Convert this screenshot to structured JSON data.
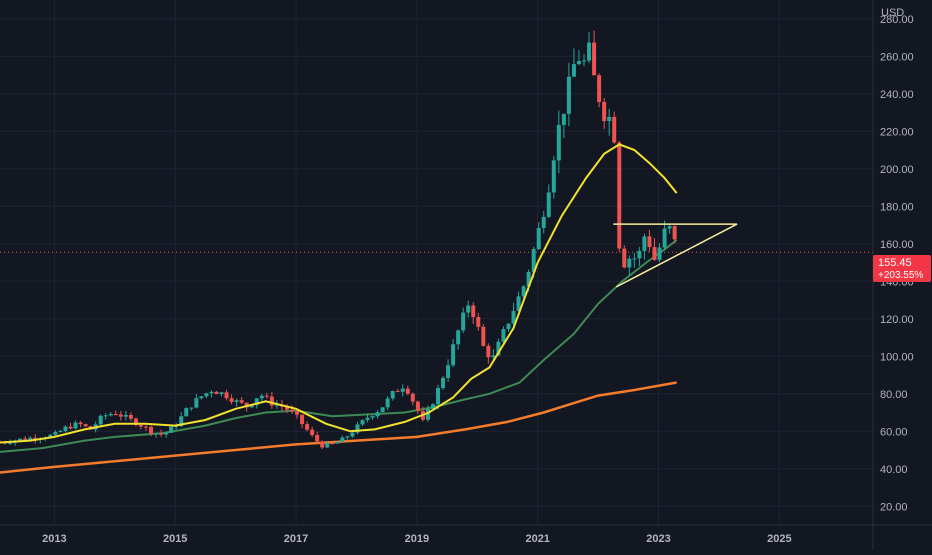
{
  "chart_data": {
    "type": "candlestick",
    "currency_label": "USD",
    "ylim": [
      10,
      290
    ],
    "xlim": [
      2012.1,
      2026.55
    ],
    "y_ticks": [
      "280.00",
      "260.00",
      "240.00",
      "220.00",
      "200.00",
      "180.00",
      "160.00",
      "140.00",
      "120.00",
      "100.00",
      "80.00",
      "60.00",
      "40.00",
      "20.00"
    ],
    "y_tick_values": [
      280,
      260,
      240,
      220,
      200,
      180,
      160,
      140,
      120,
      100,
      80,
      60,
      40,
      20
    ],
    "x_ticks": [
      "2013",
      "2015",
      "2017",
      "2019",
      "2021",
      "2023",
      "2025"
    ],
    "x_tick_values": [
      2013,
      2015,
      2017,
      2019,
      2021,
      2023,
      2025
    ],
    "last_price": {
      "value": 155.45,
      "label": "155.45",
      "change_label": "+203.55%"
    },
    "colors": {
      "background": "#131722",
      "grid": "#1f2333",
      "up": "#26a69a",
      "down": "#ef5350",
      "ma_fast": "#f2e22d",
      "ma_mid": "#3e8a55",
      "ma_slow": "#f57c2a",
      "trendline": "#f6ee9a",
      "axis_text": "#b2b5be",
      "price_label_bg": "#f23645"
    },
    "monthly_close": [
      [
        2012.1,
        54
      ],
      [
        2012.5,
        56
      ],
      [
        2012.8,
        57
      ],
      [
        2013.0,
        58
      ],
      [
        2013.2,
        62
      ],
      [
        2013.4,
        64
      ],
      [
        2013.6,
        61
      ],
      [
        2013.8,
        68
      ],
      [
        2014.0,
        70
      ],
      [
        2014.2,
        67
      ],
      [
        2014.4,
        64
      ],
      [
        2014.6,
        60
      ],
      [
        2014.8,
        58
      ],
      [
        2015.0,
        63
      ],
      [
        2015.2,
        72
      ],
      [
        2015.4,
        78
      ],
      [
        2015.6,
        82
      ],
      [
        2015.8,
        80
      ],
      [
        2016.0,
        76
      ],
      [
        2016.2,
        73
      ],
      [
        2016.4,
        80
      ],
      [
        2016.6,
        75
      ],
      [
        2016.8,
        73
      ],
      [
        2017.0,
        68
      ],
      [
        2017.15,
        62
      ],
      [
        2017.3,
        56
      ],
      [
        2017.45,
        52
      ],
      [
        2017.6,
        53
      ],
      [
        2017.8,
        56
      ],
      [
        2018.0,
        62
      ],
      [
        2018.2,
        68
      ],
      [
        2018.4,
        72
      ],
      [
        2018.6,
        80
      ],
      [
        2018.8,
        85
      ],
      [
        2019.0,
        72
      ],
      [
        2019.1,
        65
      ],
      [
        2019.3,
        78
      ],
      [
        2019.5,
        95
      ],
      [
        2019.7,
        115
      ],
      [
        2019.85,
        128
      ],
      [
        2019.95,
        122
      ],
      [
        2020.1,
        105
      ],
      [
        2020.25,
        98
      ],
      [
        2020.4,
        110
      ],
      [
        2020.6,
        125
      ],
      [
        2020.8,
        140
      ],
      [
        2021.0,
        165
      ],
      [
        2021.15,
        185
      ],
      [
        2021.3,
        215
      ],
      [
        2021.45,
        235
      ],
      [
        2021.55,
        248
      ],
      [
        2021.65,
        262
      ],
      [
        2021.75,
        255
      ],
      [
        2021.85,
        262
      ],
      [
        2021.95,
        245
      ],
      [
        2022.05,
        235
      ],
      [
        2022.15,
        225
      ],
      [
        2022.25,
        232
      ],
      [
        2022.3,
        190
      ],
      [
        2022.35,
        160
      ],
      [
        2022.45,
        148
      ],
      [
        2022.55,
        155
      ],
      [
        2022.65,
        150
      ],
      [
        2022.75,
        165
      ],
      [
        2022.85,
        160
      ],
      [
        2022.95,
        150
      ],
      [
        2023.05,
        162
      ],
      [
        2023.15,
        170
      ],
      [
        2023.25,
        163
      ],
      [
        2023.3,
        155.45
      ]
    ],
    "ma_fast": [
      [
        2012.1,
        54
      ],
      [
        2012.6,
        55
      ],
      [
        2013.0,
        57
      ],
      [
        2013.5,
        61
      ],
      [
        2014.0,
        64
      ],
      [
        2014.5,
        64
      ],
      [
        2015.0,
        63
      ],
      [
        2015.5,
        66
      ],
      [
        2016.0,
        72
      ],
      [
        2016.5,
        76
      ],
      [
        2017.0,
        72
      ],
      [
        2017.5,
        64
      ],
      [
        2017.9,
        60
      ],
      [
        2018.3,
        61
      ],
      [
        2018.8,
        65
      ],
      [
        2019.2,
        70
      ],
      [
        2019.6,
        78
      ],
      [
        2019.9,
        88
      ],
      [
        2020.2,
        94
      ],
      [
        2020.6,
        115
      ],
      [
        2021.0,
        150
      ],
      [
        2021.4,
        175
      ],
      [
        2021.8,
        195
      ],
      [
        2022.1,
        208
      ],
      [
        2022.35,
        213
      ],
      [
        2022.6,
        210
      ],
      [
        2022.85,
        203
      ],
      [
        2023.1,
        195
      ],
      [
        2023.3,
        187
      ]
    ],
    "ma_mid": [
      [
        2012.1,
        49
      ],
      [
        2012.8,
        51
      ],
      [
        2013.5,
        55
      ],
      [
        2014.0,
        57
      ],
      [
        2014.8,
        59
      ],
      [
        2015.5,
        63
      ],
      [
        2016.0,
        67
      ],
      [
        2016.5,
        70
      ],
      [
        2017.0,
        71
      ],
      [
        2017.6,
        68
      ],
      [
        2018.2,
        69
      ],
      [
        2018.8,
        70
      ],
      [
        2019.3,
        73
      ],
      [
        2019.8,
        77
      ],
      [
        2020.2,
        80
      ],
      [
        2020.7,
        86
      ],
      [
        2021.1,
        98
      ],
      [
        2021.6,
        112
      ],
      [
        2022.0,
        128
      ],
      [
        2022.4,
        140
      ],
      [
        2022.8,
        150
      ],
      [
        2023.1,
        157
      ],
      [
        2023.3,
        162
      ]
    ],
    "ma_slow": [
      [
        2012.1,
        38
      ],
      [
        2013.0,
        41
      ],
      [
        2014.0,
        44
      ],
      [
        2015.0,
        47
      ],
      [
        2016.0,
        50
      ],
      [
        2017.0,
        53
      ],
      [
        2018.0,
        55
      ],
      [
        2019.0,
        57
      ],
      [
        2019.8,
        61
      ],
      [
        2020.5,
        65
      ],
      [
        2021.1,
        70
      ],
      [
        2021.6,
        75
      ],
      [
        2022.0,
        79
      ],
      [
        2022.6,
        82
      ],
      [
        2023.3,
        86
      ]
    ],
    "triangle": {
      "top_line": [
        [
          2022.25,
          170.5
        ],
        [
          2024.3,
          170.5
        ]
      ],
      "bottom_line": [
        [
          2022.3,
          137
        ],
        [
          2024.3,
          170.5
        ]
      ]
    }
  }
}
